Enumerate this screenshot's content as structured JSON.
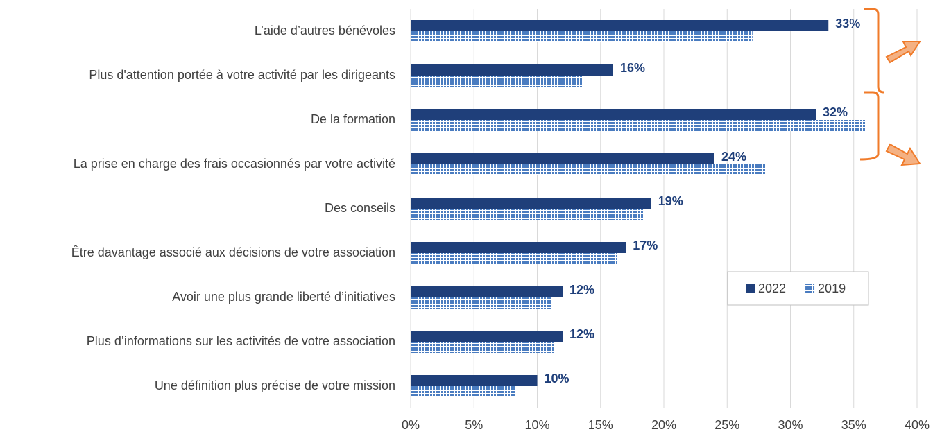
{
  "chart_data": {
    "type": "bar",
    "orientation": "horizontal",
    "categories": [
      "L’aide d’autres bénévoles",
      "Plus d'attention portée à votre activité par les dirigeants",
      "De la formation",
      "La prise en charge des frais occasionnés par votre activité",
      "Des conseils",
      "Être davantage associé aux décisions de votre association",
      "Avoir une plus grande liberté d’initiatives",
      "Plus d’informations sur les activités de votre association",
      "Une définition plus précise de votre mission"
    ],
    "series": [
      {
        "name": "2022",
        "color": "#1f3f7a",
        "values": [
          33,
          16,
          32,
          24,
          19,
          17,
          12,
          12,
          10
        ],
        "value_labels": [
          "33%",
          "16%",
          "32%",
          "24%",
          "19%",
          "17%",
          "12%",
          "12%",
          "10%"
        ]
      },
      {
        "name": "2019",
        "color": "#4a7cc0",
        "pattern": "dots",
        "values": [
          27,
          13.6,
          36,
          28,
          18.4,
          16.3,
          11.1,
          11.3,
          8.3
        ]
      }
    ],
    "xlim": [
      0,
      40
    ],
    "xticks": [
      {
        "value": 0,
        "label": "0%"
      },
      {
        "value": 5,
        "label": "5%"
      },
      {
        "value": 10,
        "label": "10%"
      },
      {
        "value": 15,
        "label": "15%"
      },
      {
        "value": 20,
        "label": "20%"
      },
      {
        "value": 25,
        "label": "25%"
      },
      {
        "value": 30,
        "label": "30%"
      },
      {
        "value": 35,
        "label": "35%"
      },
      {
        "value": 40,
        "label": "40%"
      }
    ],
    "grid": true,
    "legend": "right"
  }
}
